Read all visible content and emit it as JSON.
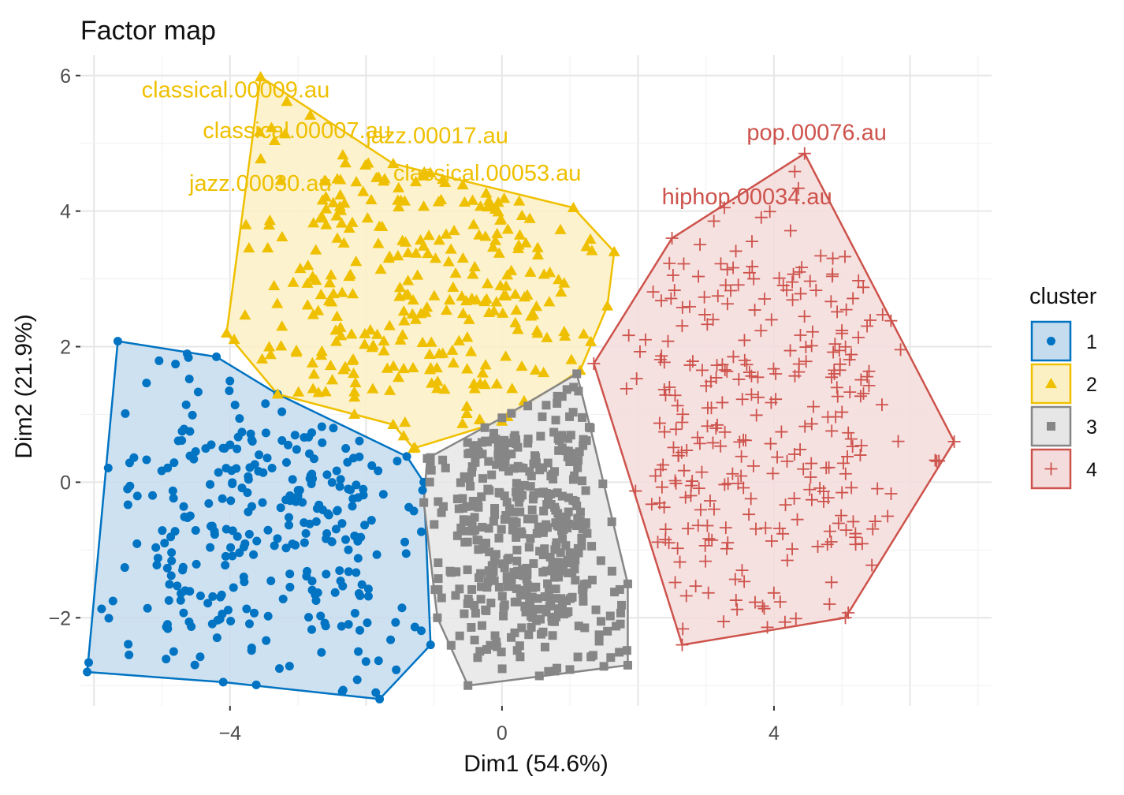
{
  "chart_data": {
    "type": "scatter",
    "title": "Factor map",
    "xlabel": "Dim1 (54.6%)",
    "ylabel": "Dim2 (21.9%)",
    "xlim": [
      -6.2,
      7.2
    ],
    "ylim": [
      -3.3,
      6.3
    ],
    "xticks": [
      -4,
      0,
      4
    ],
    "yticks": [
      -2,
      0,
      2,
      4,
      6
    ],
    "grid": true,
    "legend": {
      "title": "cluster",
      "placement": "right",
      "entries": [
        "1",
        "2",
        "3",
        "4"
      ]
    },
    "series": [
      {
        "name": "1",
        "color": "#0073C2",
        "fill": "#C5DCEE",
        "marker": "circle",
        "hull": [
          [
            -5.65,
            2.08
          ],
          [
            -4.2,
            1.85
          ],
          [
            -3.3,
            1.3
          ],
          [
            -1.4,
            0.38
          ],
          [
            -1.15,
            0.0
          ],
          [
            -1.05,
            -2.4
          ],
          [
            -1.8,
            -3.2
          ],
          [
            -4.1,
            -2.95
          ],
          [
            -6.1,
            -2.8
          ]
        ],
        "n_points": 300
      },
      {
        "name": "2",
        "color": "#EFC000",
        "fill": "#FBF0C4",
        "marker": "triangle",
        "hull": [
          [
            -4.05,
            2.2
          ],
          [
            -3.55,
            5.98
          ],
          [
            -1.6,
            4.7
          ],
          [
            1.05,
            4.05
          ],
          [
            1.65,
            3.4
          ],
          [
            1.55,
            2.6
          ],
          [
            1.15,
            1.65
          ],
          [
            0.0,
            0.9
          ],
          [
            -1.3,
            0.5
          ],
          [
            -1.6,
            0.85
          ],
          [
            -3.3,
            1.3
          ]
        ],
        "n_points": 300
      },
      {
        "name": "3",
        "color": "#868686",
        "fill": "#E6E6E6",
        "marker": "square",
        "hull": [
          [
            -1.1,
            0.35
          ],
          [
            0.0,
            0.95
          ],
          [
            1.1,
            1.6
          ],
          [
            1.3,
            0.8
          ],
          [
            1.85,
            -1.5
          ],
          [
            1.85,
            -2.7
          ],
          [
            -0.5,
            -3.0
          ],
          [
            -0.95,
            -2.0
          ],
          [
            -1.15,
            -0.3
          ]
        ],
        "n_points": 450
      },
      {
        "name": "4",
        "color": "#CD534C",
        "fill": "#F4DCDC",
        "marker": "cross",
        "hull": [
          [
            4.45,
            4.85
          ],
          [
            6.65,
            0.6
          ],
          [
            5.05,
            -2.0
          ],
          [
            2.65,
            -2.4
          ],
          [
            1.35,
            1.75
          ],
          [
            2.5,
            3.6
          ]
        ],
        "n_points": 300
      }
    ],
    "annotations": [
      {
        "text": "classical.00009.au",
        "x": -5.3,
        "y": 5.68,
        "series": "2"
      },
      {
        "text": "classical.00007.au",
        "x": -4.4,
        "y": 5.08,
        "series": "2"
      },
      {
        "text": "jazz.00017.au",
        "x": -2.0,
        "y": 5.0,
        "series": "2"
      },
      {
        "text": "jazz.00030.au",
        "x": -4.6,
        "y": 4.3,
        "series": "2"
      },
      {
        "text": "classical.00053.au",
        "x": -1.6,
        "y": 4.45,
        "series": "2"
      },
      {
        "text": "pop.00076.au",
        "x": 3.6,
        "y": 5.05,
        "series": "4"
      },
      {
        "text": "hiphop.00034.au",
        "x": 2.35,
        "y": 4.1,
        "series": "4"
      }
    ]
  }
}
